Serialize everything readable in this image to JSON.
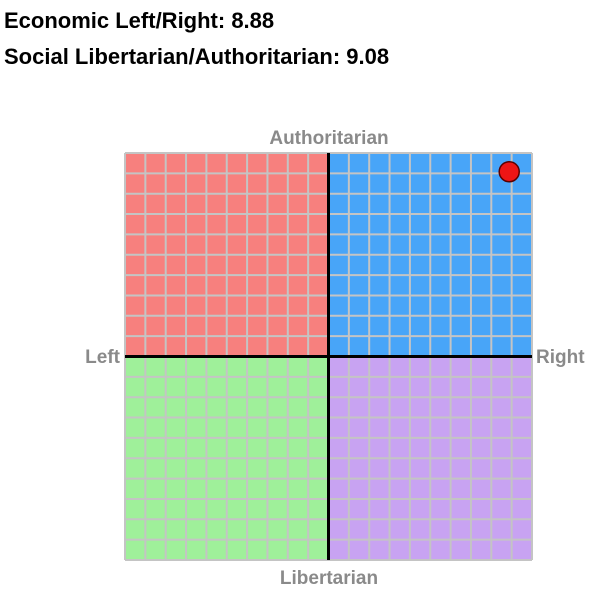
{
  "chart_data": {
    "type": "scatter",
    "annotations": [
      "Economic Left/Right: 8.88",
      "Social Libertarian/Authoritarian: 9.08"
    ],
    "top_label": "Authoritarian",
    "bottom_label": "Libertarian",
    "left_label": "Left",
    "right_label": "Right",
    "series": [
      {
        "x": [
          8.88
        ],
        "values": [
          9.08
        ],
        "color": "#ee1515"
      }
    ],
    "xlim": [
      -10,
      10
    ],
    "ylim": [
      -10,
      10
    ],
    "xticks": [
      -10,
      -9,
      -8,
      -7,
      -6,
      -5,
      -4,
      -3,
      -2,
      -1,
      0,
      1,
      2,
      3,
      4,
      5,
      6,
      7,
      8,
      9,
      10
    ],
    "yticks": [
      -10,
      -9,
      -8,
      -7,
      -6,
      -5,
      -4,
      -3,
      -2,
      -1,
      0,
      1,
      2,
      3,
      4,
      5,
      6,
      7,
      8,
      9,
      10
    ],
    "grid": true,
    "quadrant_colors": [
      "#f7807e",
      "#48a5f8",
      "#9ff09a",
      "#c8a3f2"
    ]
  }
}
